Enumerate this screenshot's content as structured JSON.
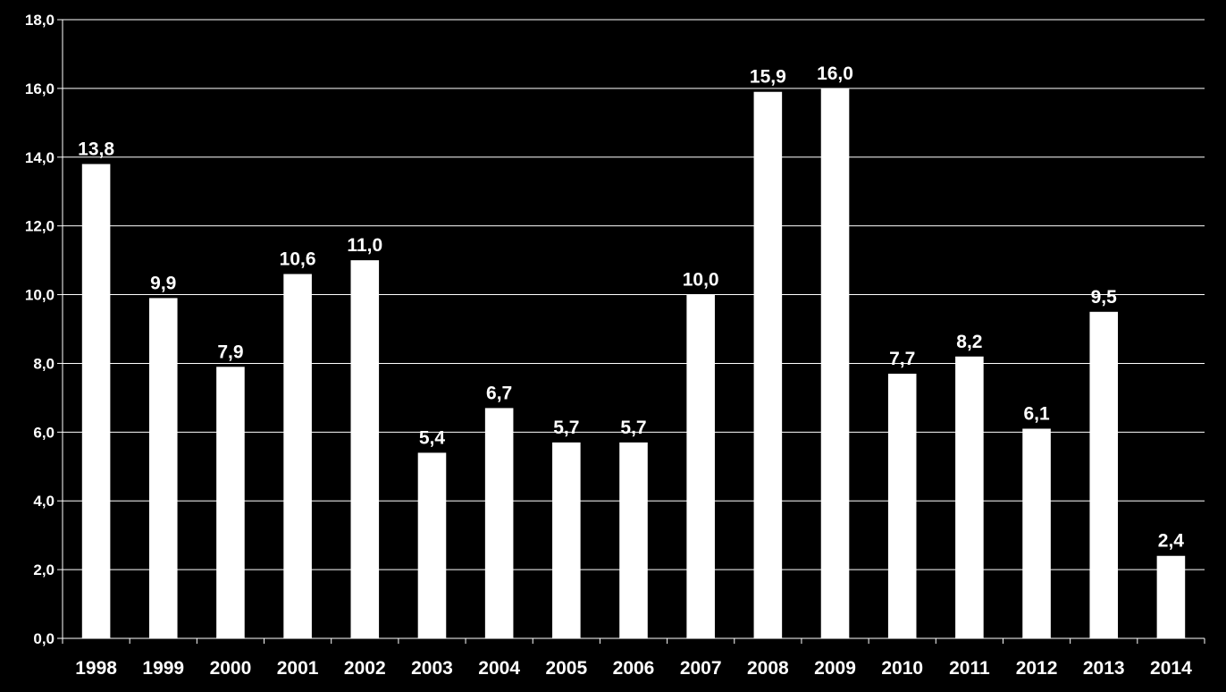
{
  "chart_data": {
    "type": "bar",
    "title": "",
    "xlabel": "",
    "ylabel": "",
    "categories": [
      "1998",
      "1999",
      "2000",
      "2001",
      "2002",
      "2003",
      "2004",
      "2005",
      "2006",
      "2007",
      "2008",
      "2009",
      "2010",
      "2011",
      "2012",
      "2013",
      "2014"
    ],
    "values": [
      13.8,
      9.9,
      7.9,
      10.6,
      11.0,
      5.4,
      6.7,
      5.7,
      5.7,
      10.0,
      15.9,
      16.0,
      7.7,
      8.2,
      6.1,
      9.5,
      2.4
    ],
    "value_labels": [
      "13,8",
      "9,9",
      "7,9",
      "10,6",
      "11,0",
      "5,4",
      "6,7",
      "5,7",
      "5,7",
      "10,0",
      "15,9",
      "16,0",
      "7,7",
      "8,2",
      "6,1",
      "9,5",
      "2,4"
    ],
    "ylim": [
      0,
      18
    ],
    "yticks": [
      0,
      2,
      4,
      6,
      8,
      10,
      12,
      14,
      16,
      18
    ],
    "ytick_labels": [
      "0,0",
      "2,0",
      "4,0",
      "6,0",
      "8,0",
      "10,0",
      "12,0",
      "14,0",
      "16,0",
      "18,0"
    ],
    "grid": true,
    "legend": "none",
    "colors": {
      "background": "#000000",
      "bar": "#ffffff",
      "gridline": "#ffffff",
      "text": "#ffffff"
    }
  }
}
